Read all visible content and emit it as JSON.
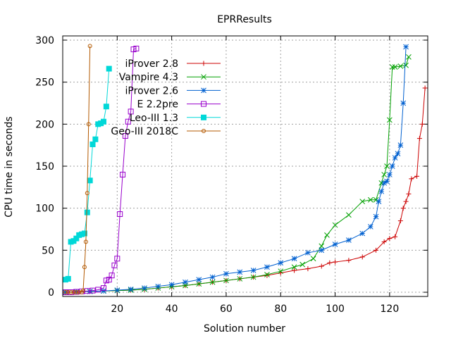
{
  "chart_data": {
    "type": "line",
    "title": "EPRResults",
    "xlabel": "Solution number",
    "ylabel": "CPU time in seconds",
    "xlim": [
      0,
      134
    ],
    "ylim": [
      -5,
      305
    ],
    "xticks": [
      20,
      40,
      60,
      80,
      100,
      120
    ],
    "yticks": [
      0,
      50,
      100,
      150,
      200,
      250,
      300
    ],
    "grid": true,
    "legend_position": "top-left",
    "series": [
      {
        "name": "iProver 2.8",
        "color": "#cc0000",
        "marker": "plus",
        "x": [
          1,
          5,
          10,
          15,
          20,
          25,
          30,
          35,
          40,
          45,
          50,
          55,
          60,
          65,
          70,
          75,
          80,
          85,
          90,
          95,
          98,
          100,
          105,
          110,
          115,
          118,
          120,
          122,
          124,
          125,
          126,
          127,
          128,
          130,
          131,
          132,
          133
        ],
        "y": [
          0,
          0.5,
          1,
          1.5,
          2,
          2.5,
          3.5,
          5,
          6.5,
          8,
          10,
          12,
          14,
          16,
          18,
          20,
          23,
          26,
          28,
          31,
          35,
          36,
          38,
          42,
          50,
          60,
          64,
          66,
          85,
          100,
          108,
          117,
          135,
          138,
          183,
          200,
          243
        ]
      },
      {
        "name": "Vampire 4.3",
        "color": "#00a000",
        "marker": "x",
        "x": [
          1,
          5,
          10,
          15,
          20,
          25,
          30,
          35,
          40,
          45,
          50,
          55,
          60,
          65,
          70,
          75,
          80,
          85,
          88,
          92,
          95,
          97,
          100,
          105,
          110,
          113,
          115,
          117,
          118,
          119,
          120,
          121,
          122,
          124,
          126,
          127
        ],
        "y": [
          0,
          0.5,
          1,
          1.5,
          2,
          2.5,
          3.5,
          5,
          6.5,
          8,
          10,
          12,
          14,
          16,
          18,
          21,
          25,
          30,
          33,
          40,
          55,
          68,
          80,
          92,
          108,
          110,
          110,
          130,
          140,
          150,
          205,
          268,
          268,
          269,
          270,
          280
        ]
      },
      {
        "name": "iProver 2.6",
        "color": "#0060d0",
        "marker": "star",
        "x": [
          1,
          5,
          10,
          15,
          20,
          25,
          30,
          35,
          40,
          45,
          50,
          55,
          60,
          65,
          70,
          75,
          80,
          85,
          90,
          95,
          100,
          105,
          110,
          113,
          115,
          116,
          117,
          118,
          119,
          120,
          121,
          122,
          123,
          124,
          125,
          126
        ],
        "y": [
          0,
          0.5,
          1,
          1.5,
          2.5,
          3.5,
          5,
          7,
          9,
          12,
          15,
          18,
          22,
          24,
          26,
          30,
          35,
          40,
          47,
          50,
          57,
          62,
          70,
          78,
          90,
          108,
          120,
          130,
          132,
          140,
          150,
          160,
          165,
          175,
          225,
          292
        ]
      },
      {
        "name": "E 2.2pre",
        "color": "#9900cc",
        "marker": "square",
        "x": [
          1,
          3,
          5,
          7,
          9,
          11,
          13,
          15,
          16,
          17,
          18,
          19,
          20,
          21,
          22,
          23,
          24,
          25,
          26,
          27
        ],
        "y": [
          0,
          0,
          0.5,
          1,
          1.5,
          2,
          3,
          5,
          14,
          15,
          20,
          32,
          40,
          93,
          140,
          186,
          203,
          215,
          289,
          290
        ]
      },
      {
        "name": "Leo-III 1.3",
        "color": "#00d8d8",
        "marker": "filled-square",
        "x": [
          1,
          2,
          3,
          4,
          5,
          6,
          7,
          8,
          9,
          10,
          11,
          12,
          13,
          14,
          15,
          16,
          17
        ],
        "y": [
          15,
          16,
          60,
          61,
          64,
          68,
          69,
          70,
          95,
          133,
          176,
          182,
          200,
          201,
          203,
          221,
          266
        ]
      },
      {
        "name": "Geo-III 2018C",
        "color": "#b35900",
        "marker": "circle",
        "x": [
          1,
          2,
          3,
          4,
          5,
          6,
          7,
          7.5,
          8,
          8.5,
          9,
          9.5,
          10
        ],
        "y": [
          0,
          0,
          0,
          0,
          0,
          0,
          0,
          2,
          30,
          60,
          118,
          200,
          293
        ]
      }
    ]
  }
}
